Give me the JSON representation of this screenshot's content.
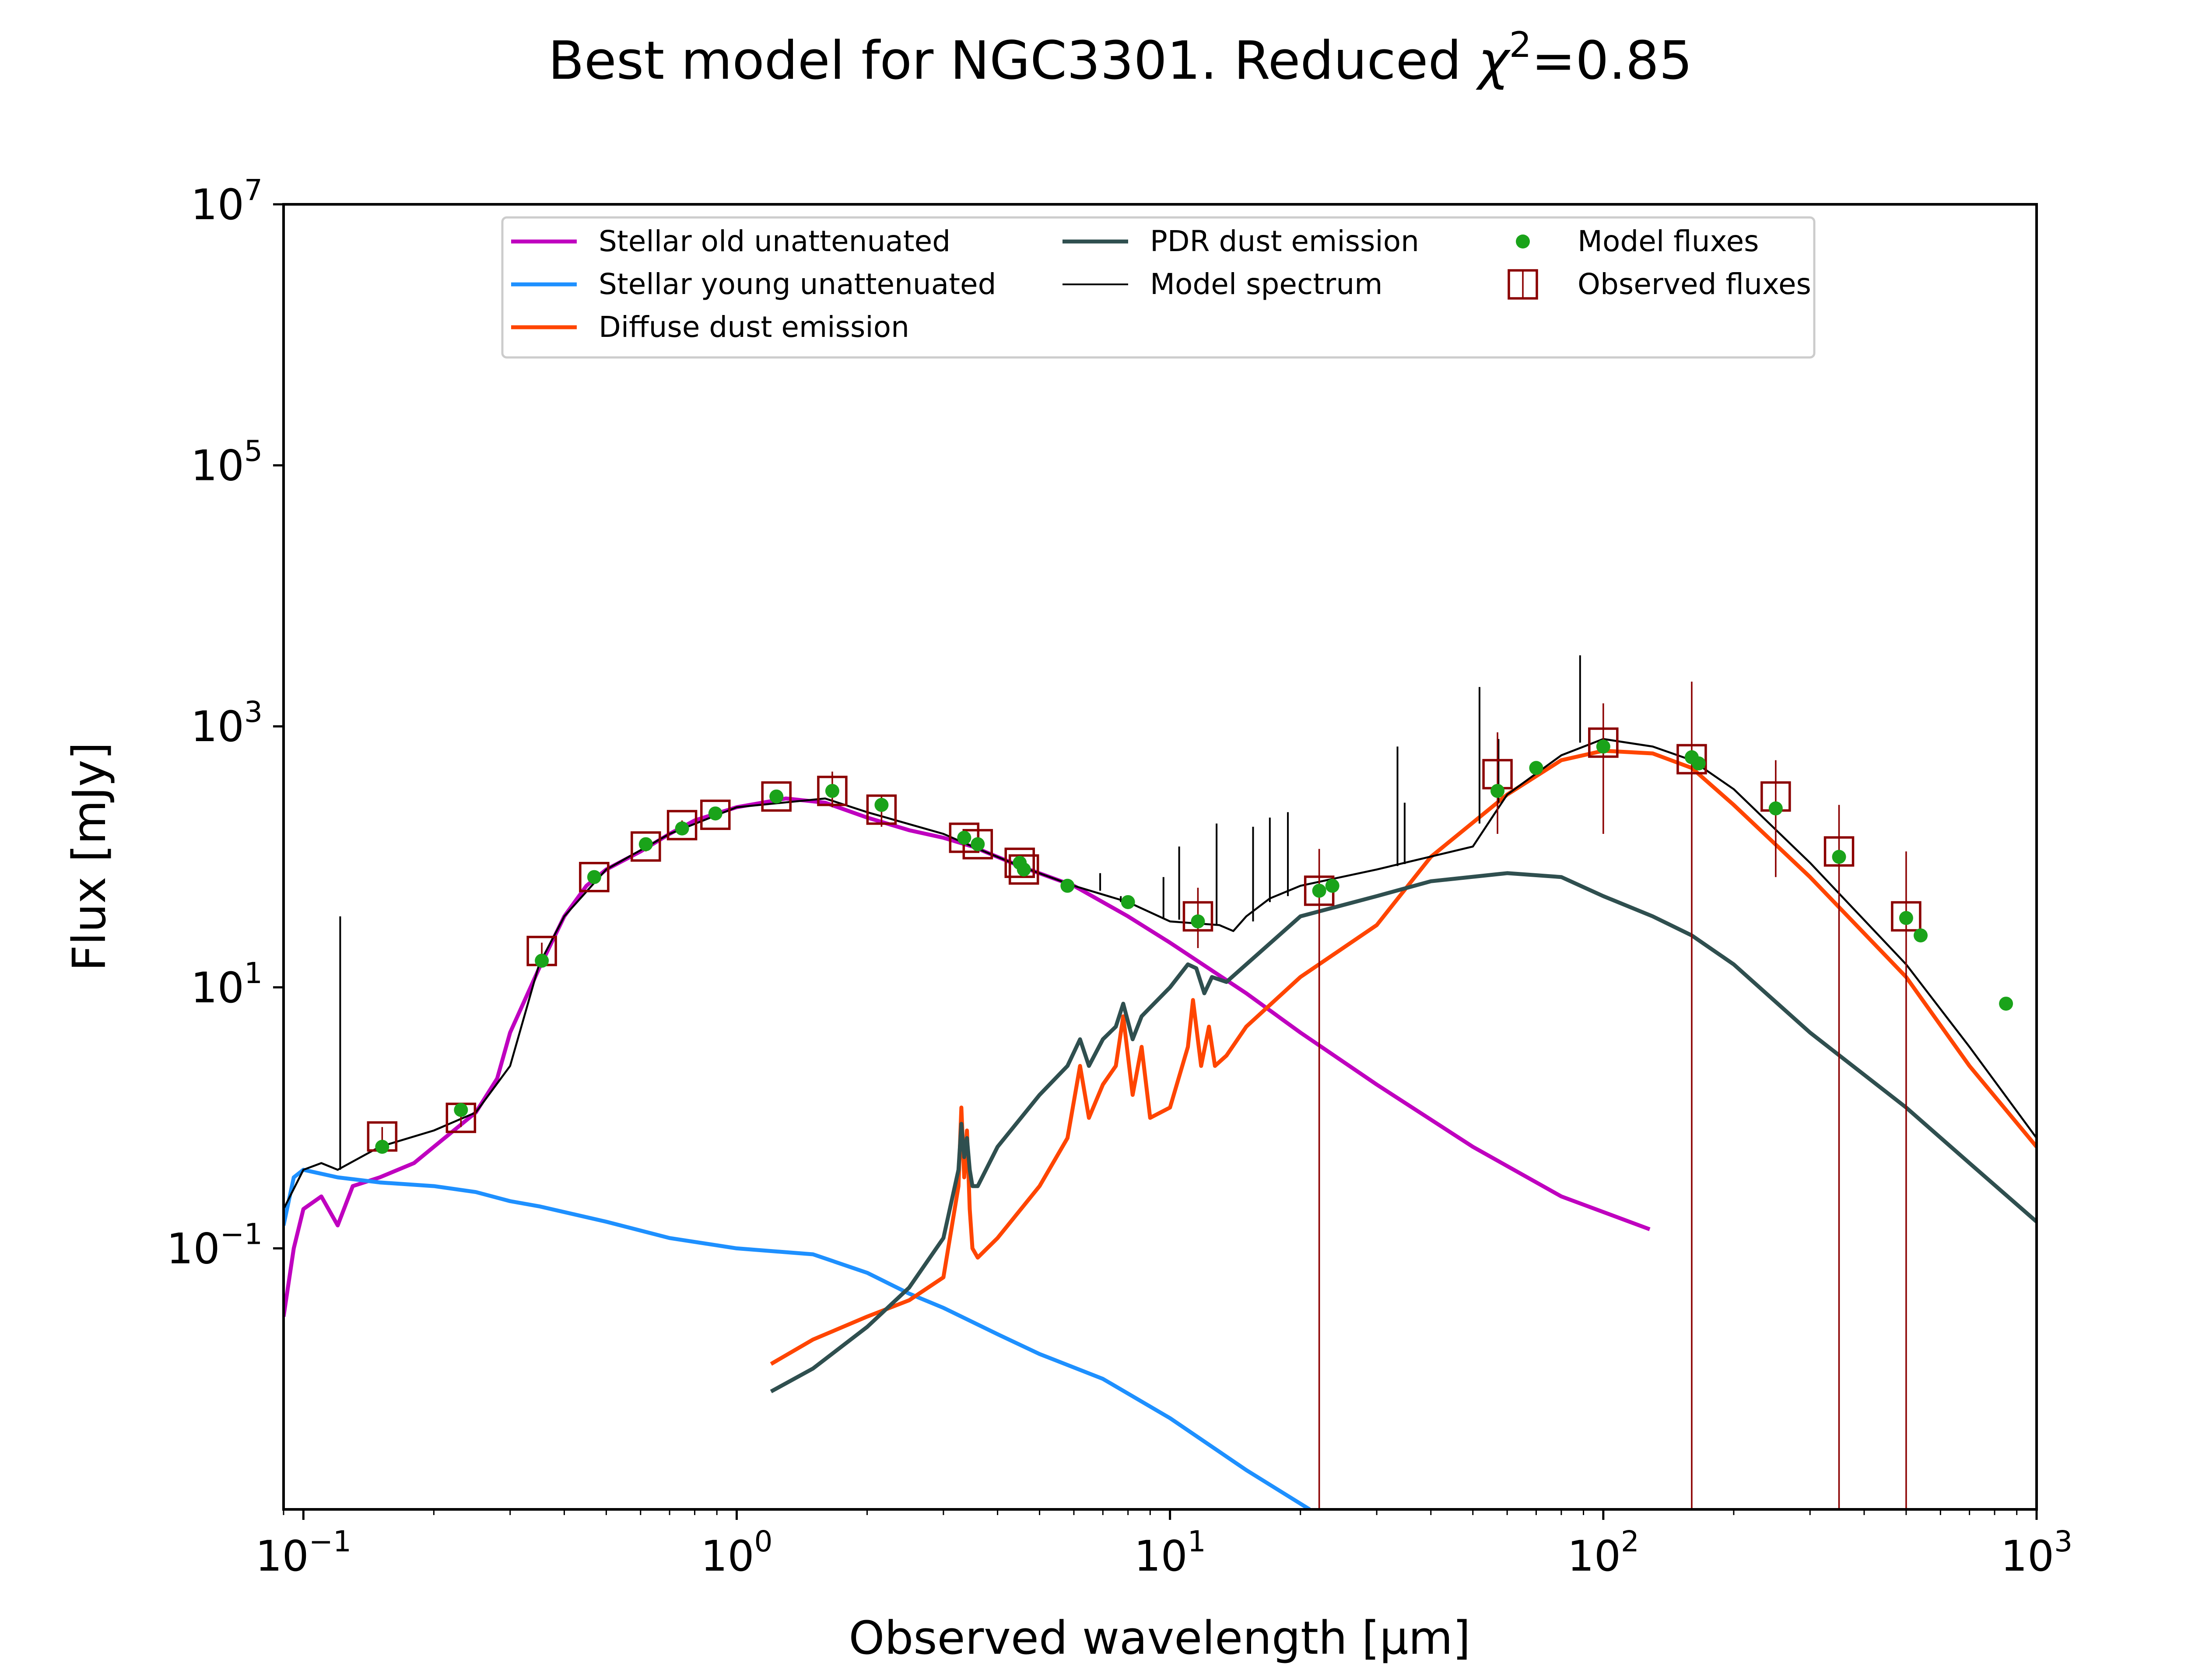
{
  "chart_data": {
    "type": "line",
    "title": "Best model for NGC3301. Reduced χ²=0.85",
    "title_main": "Best model for NGC3301. Reduced ",
    "title_chi": "χ",
    "title_sup": "2",
    "title_value": "=0.85",
    "xlabel": "Observed wavelength [μm]",
    "ylabel": "Flux [mJy]",
    "xscale": "log",
    "yscale": "log",
    "xlim": [
      0.09,
      1000
    ],
    "ylim": [
      0.001,
      10000000
    ],
    "grid": false,
    "legend_position": "top-center",
    "x_ticks": [
      {
        "value": 0.1,
        "base": "10",
        "exp": "−1"
      },
      {
        "value": 1,
        "base": "10",
        "exp": "0"
      },
      {
        "value": 10,
        "base": "10",
        "exp": "1"
      },
      {
        "value": 100,
        "base": "10",
        "exp": "2"
      },
      {
        "value": 1000,
        "base": "10",
        "exp": "3"
      }
    ],
    "y_ticks": [
      {
        "value": 0.1,
        "base": "10",
        "exp": "−1"
      },
      {
        "value": 10,
        "base": "10",
        "exp": "1"
      },
      {
        "value": 1000,
        "base": "10",
        "exp": "3"
      },
      {
        "value": 100000,
        "base": "10",
        "exp": "5"
      },
      {
        "value": 10000000,
        "base": "10",
        "exp": "7"
      }
    ],
    "legend": [
      {
        "label": "Stellar old unattenuated",
        "kind": "line",
        "color": "#bf00bf"
      },
      {
        "label": "Stellar young unattenuated",
        "kind": "line",
        "color": "#1e90ff"
      },
      {
        "label": "Diffuse dust emission",
        "kind": "line",
        "color": "#ff4500"
      },
      {
        "label": "PDR dust emission",
        "kind": "line",
        "color": "#2f4f4f"
      },
      {
        "label": "Model spectrum",
        "kind": "thin-line",
        "color": "#000000"
      },
      {
        "label": "Model fluxes",
        "kind": "dot",
        "color": "#1aa31a"
      },
      {
        "label": "Observed fluxes",
        "kind": "square",
        "color": "#8b0000"
      }
    ],
    "series": [
      {
        "name": "Stellar old unattenuated",
        "color": "#bf00bf",
        "width": 2,
        "x": [
          0.09,
          0.095,
          0.1,
          0.11,
          0.12,
          0.13,
          0.15,
          0.18,
          0.2,
          0.25,
          0.28,
          0.3,
          0.35,
          0.4,
          0.45,
          0.5,
          0.6,
          0.7,
          0.8,
          1.0,
          1.3,
          1.6,
          2.0,
          2.5,
          3.0,
          3.5,
          4.5,
          6,
          8,
          10,
          15,
          20,
          30,
          50,
          80,
          128
        ],
        "y": [
          0.03,
          0.1,
          0.2,
          0.25,
          0.15,
          0.3,
          0.35,
          0.45,
          0.6,
          1.1,
          2,
          4.5,
          14,
          35,
          60,
          80,
          110,
          150,
          190,
          240,
          280,
          260,
          200,
          160,
          140,
          120,
          85,
          60,
          35,
          22,
          9,
          4.5,
          1.8,
          0.6,
          0.25,
          0.14
        ]
      },
      {
        "name": "Stellar young unattenuated",
        "color": "#1e90ff",
        "width": 2,
        "x": [
          0.09,
          0.095,
          0.1,
          0.12,
          0.15,
          0.2,
          0.25,
          0.3,
          0.35,
          0.5,
          0.7,
          1.0,
          1.5,
          2.0,
          2.5,
          3.0,
          4.0,
          5.0,
          7.0,
          10,
          15,
          21
        ],
        "y": [
          0.15,
          0.35,
          0.4,
          0.35,
          0.32,
          0.3,
          0.27,
          0.23,
          0.21,
          0.16,
          0.12,
          0.1,
          0.09,
          0.065,
          0.045,
          0.035,
          0.022,
          0.0155,
          0.01,
          0.005,
          0.002,
          0.001
        ]
      },
      {
        "name": "Diffuse dust emission",
        "color": "#ff4500",
        "width": 2,
        "x": [
          1.2,
          1.5,
          2.0,
          2.5,
          3.0,
          3.25,
          3.3,
          3.35,
          3.4,
          3.45,
          3.5,
          3.6,
          4.0,
          5.0,
          5.8,
          6.2,
          6.5,
          7.0,
          7.5,
          7.8,
          8.2,
          8.6,
          9.0,
          10.0,
          11.0,
          11.3,
          11.8,
          12.3,
          12.7,
          13.5,
          15,
          20,
          30,
          40,
          60,
          80,
          100,
          130,
          160,
          200,
          300,
          500,
          700,
          1000
        ],
        "y": [
          0.013,
          0.02,
          0.03,
          0.04,
          0.06,
          0.3,
          1.2,
          0.35,
          0.8,
          0.2,
          0.1,
          0.085,
          0.12,
          0.3,
          0.7,
          2.5,
          1.0,
          1.8,
          2.5,
          6,
          1.5,
          3.5,
          1.0,
          1.2,
          3.5,
          8,
          2.5,
          5,
          2.5,
          3,
          5,
          12,
          30,
          100,
          300,
          550,
          650,
          620,
          480,
          250,
          70,
          12,
          2.5,
          0.6
        ]
      },
      {
        "name": "PDR dust emission",
        "color": "#2f4f4f",
        "width": 2,
        "x": [
          1.2,
          1.5,
          2.0,
          2.5,
          3.0,
          3.25,
          3.3,
          3.35,
          3.4,
          3.45,
          3.5,
          3.6,
          4.0,
          5.0,
          5.8,
          6.2,
          6.5,
          7.0,
          7.5,
          7.8,
          8.2,
          8.6,
          9.0,
          10.0,
          11.0,
          11.5,
          12.0,
          12.5,
          13.5,
          15,
          20,
          30,
          40,
          60,
          80,
          100,
          130,
          160,
          200,
          300,
          500,
          700,
          1000
        ],
        "y": [
          0.008,
          0.012,
          0.025,
          0.05,
          0.12,
          0.4,
          0.9,
          0.5,
          0.7,
          0.4,
          0.3,
          0.3,
          0.6,
          1.5,
          2.5,
          4,
          2.5,
          4,
          5,
          7.5,
          4,
          6,
          7,
          10,
          15,
          14,
          9,
          12,
          11,
          15,
          35,
          50,
          65,
          75,
          70,
          50,
          35,
          25,
          15,
          4.5,
          1.2,
          0.45,
          0.16
        ]
      },
      {
        "name": "Model spectrum",
        "color": "#000000",
        "width": 1,
        "x": [
          0.09,
          0.1,
          0.11,
          0.12,
          0.15,
          0.2,
          0.25,
          0.3,
          0.35,
          0.4,
          0.5,
          0.7,
          1.0,
          1.6,
          2.0,
          3.0,
          3.5,
          4.5,
          6,
          8,
          10,
          13,
          14,
          15,
          17,
          20,
          30,
          50,
          60,
          80,
          100,
          130,
          160,
          200,
          300,
          500,
          700,
          1000
        ],
        "y": [
          0.2,
          0.4,
          0.45,
          0.4,
          0.6,
          0.8,
          1.1,
          2.5,
          15,
          35,
          80,
          150,
          240,
          280,
          220,
          150,
          120,
          85,
          60,
          45,
          32,
          30,
          27,
          35,
          48,
          60,
          80,
          120,
          300,
          600,
          800,
          700,
          550,
          330,
          90,
          15,
          3.5,
          0.7
        ]
      }
    ],
    "emission_lines": [
      {
        "x": 0.1216,
        "y_base": 0.4,
        "y_top": 35
      },
      {
        "x": 6.9,
        "y_base": 55,
        "y_top": 75
      },
      {
        "x": 7.7,
        "y_base": 45,
        "y_top": 50
      },
      {
        "x": 9.66,
        "y_base": 34,
        "y_top": 70
      },
      {
        "x": 10.5,
        "y_base": 33,
        "y_top": 120
      },
      {
        "x": 12.81,
        "y_base": 30,
        "y_top": 180
      },
      {
        "x": 15.55,
        "y_base": 32,
        "y_top": 170
      },
      {
        "x": 17.0,
        "y_base": 45,
        "y_top": 200
      },
      {
        "x": 18.71,
        "y_base": 50,
        "y_top": 220
      },
      {
        "x": 33.5,
        "y_base": 85,
        "y_top": 700
      },
      {
        "x": 34.8,
        "y_base": 88,
        "y_top": 260
      },
      {
        "x": 51.8,
        "y_base": 180,
        "y_top": 2000
      },
      {
        "x": 57.3,
        "y_base": 260,
        "y_top": 800
      },
      {
        "x": 88.4,
        "y_base": 750,
        "y_top": 3500
      }
    ],
    "model_fluxes": {
      "x": [
        0.152,
        0.231,
        0.355,
        0.469,
        0.617,
        0.748,
        0.893,
        1.235,
        1.662,
        2.159,
        3.35,
        3.6,
        4.5,
        4.6,
        5.8,
        8.0,
        11.6,
        22.1,
        23.7,
        57.0,
        70.0,
        100.0,
        160.0,
        166.0,
        250.0,
        350.0,
        500.0,
        540.0,
        850.0
      ],
      "y": [
        0.6,
        1.15,
        16,
        70,
        125,
        165,
        215,
        290,
        320,
        250,
        140,
        125,
        90,
        80,
        60,
        45,
        32,
        55,
        60,
        320,
        480,
        700,
        580,
        520,
        235,
        100,
        34,
        25,
        7.5
      ]
    },
    "observed_fluxes": {
      "x": [
        0.152,
        0.231,
        0.355,
        0.469,
        0.617,
        0.748,
        0.893,
        1.235,
        1.662,
        2.159,
        3.35,
        3.6,
        4.5,
        4.6,
        11.6,
        22.1,
        57.0,
        100.0,
        160.0,
        250.0,
        350.0,
        500.0
      ],
      "y": [
        0.72,
        1.0,
        19,
        70,
        120,
        175,
        210,
        290,
        320,
        230,
        140,
        125,
        90,
        80,
        35,
        55,
        430,
        750,
        560,
        290,
        110,
        35
      ],
      "err_low": [
        0.6,
        0.85,
        16,
        62,
        110,
        160,
        195,
        270,
        240,
        170,
        120,
        110,
        80,
        72,
        20,
        0.001,
        150,
        150,
        0.001,
        70,
        0.001,
        0.001
      ],
      "err_high": [
        0.85,
        1.15,
        22,
        78,
        130,
        190,
        225,
        310,
        450,
        300,
        160,
        140,
        100,
        88,
        58,
        115,
        900,
        1500,
        2200,
        550,
        250,
        110
      ]
    }
  }
}
